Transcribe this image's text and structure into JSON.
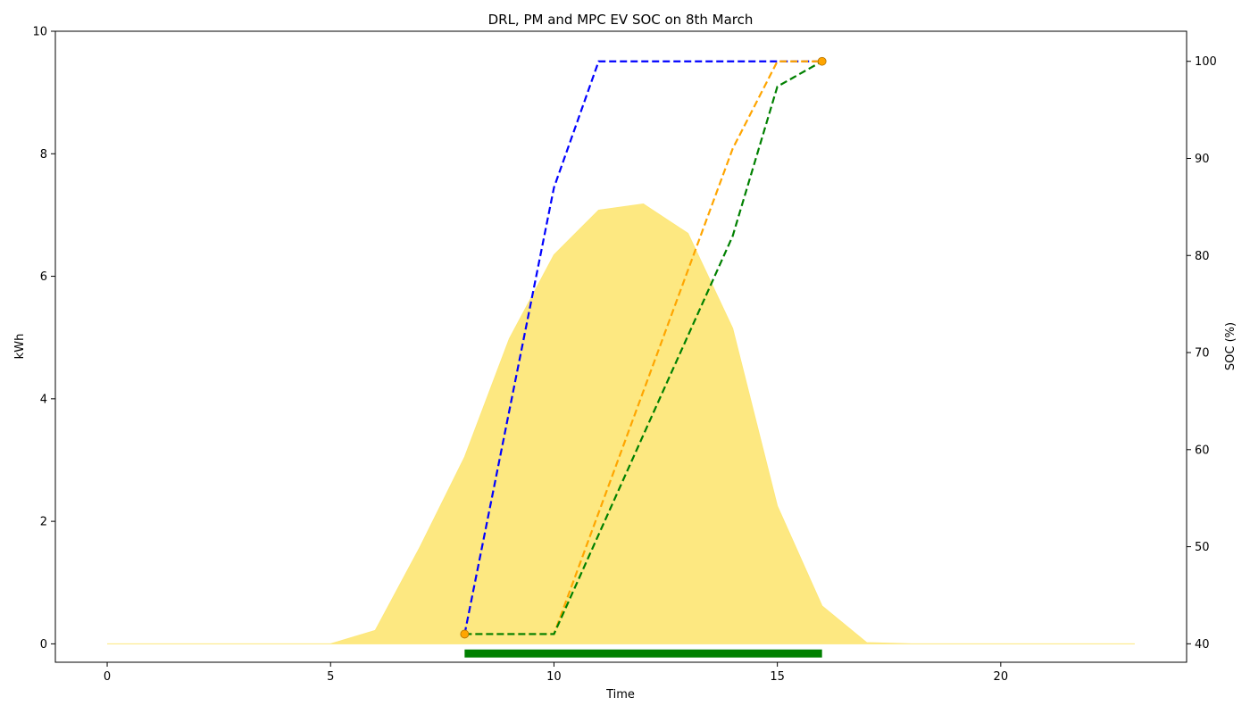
{
  "chart_data": {
    "type": "line",
    "title": "DRL, PM and MPC EV SOC on 8th March",
    "xlabel": "Time",
    "ylabel_left": "kWh",
    "ylabel_right": "SOC (%)",
    "xlim": [
      -1.16,
      24.16
    ],
    "ylim_left": [
      -0.3,
      10
    ],
    "ylim_right": [
      38.1,
      103.1
    ],
    "xticks": [
      0,
      5,
      10,
      15,
      20
    ],
    "yticks_left": [
      0,
      2,
      4,
      6,
      8,
      10
    ],
    "yticks_right": [
      40,
      50,
      60,
      70,
      80,
      90,
      100
    ],
    "grid": false,
    "pv_area": {
      "color": "#fde77a",
      "x": [
        0,
        1,
        2,
        3,
        4,
        5,
        6,
        7,
        8,
        9,
        10,
        11,
        12,
        13,
        14,
        15,
        16,
        17,
        18,
        19,
        20,
        21,
        22,
        23
      ],
      "values": [
        0,
        0,
        0,
        0,
        0,
        0,
        0.22,
        1.58,
        3.05,
        4.98,
        6.35,
        7.08,
        7.18,
        6.7,
        5.15,
        2.25,
        0.62,
        0.02,
        0,
        0,
        0,
        0,
        0,
        0
      ]
    },
    "series": [
      {
        "axis": "right",
        "color": "#0000ff",
        "dashed": true,
        "x": [
          8,
          10,
          11,
          16
        ],
        "values": [
          41,
          87,
          100,
          100
        ]
      },
      {
        "axis": "right",
        "color": "#ffa500",
        "dashed": true,
        "x": [
          8,
          10,
          14,
          15,
          16
        ],
        "values": [
          41,
          41,
          91,
          100,
          100
        ]
      },
      {
        "axis": "right",
        "color": "#008000",
        "dashed": true,
        "x": [
          8,
          10,
          14,
          15,
          16
        ],
        "values": [
          41,
          41,
          82,
          97.4,
          100
        ]
      }
    ],
    "markers": {
      "color": "#ffa500",
      "axis": "right",
      "points": [
        {
          "x": 8,
          "y": 41
        },
        {
          "x": 16,
          "y": 100
        }
      ]
    },
    "availability_bar": {
      "color": "#008000",
      "x_start": 8,
      "x_end": 16
    }
  }
}
